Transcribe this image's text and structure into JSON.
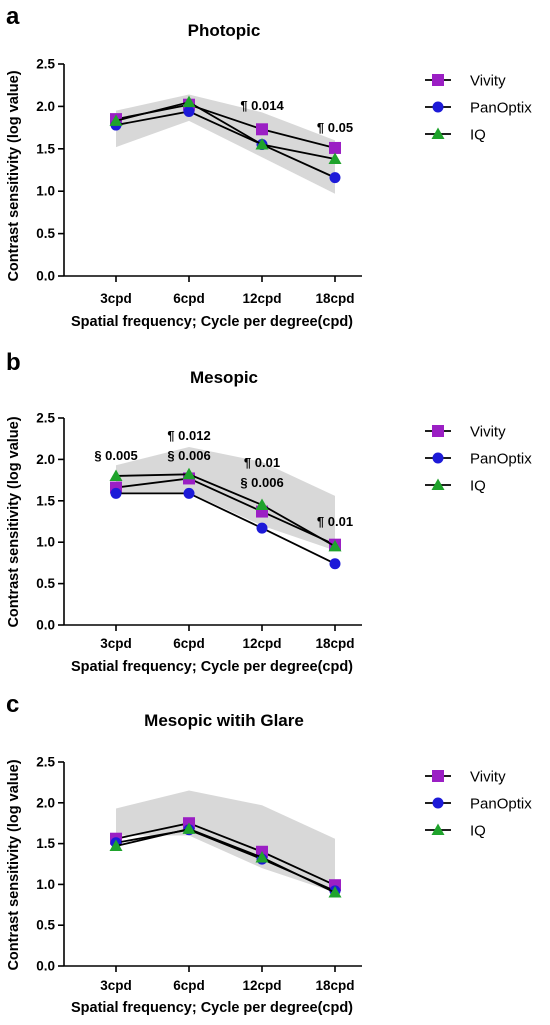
{
  "figure": {
    "legend": [
      {
        "name": "Vivity",
        "color": "#9b1fc4",
        "marker": "square"
      },
      {
        "name": "PanOptix",
        "color": "#1d1ad8",
        "marker": "circle"
      },
      {
        "name": "IQ",
        "color": "#1fa32c",
        "marker": "triangle"
      }
    ]
  },
  "chart_data": [
    {
      "panel": "a",
      "type": "line",
      "title": "Photopic",
      "xlabel": "Spatial frequency; Cycle per degree(cpd)",
      "ylabel": "Contrast sensitivity (log value)",
      "categories": [
        "3cpd",
        "6cpd",
        "12cpd",
        "18cpd"
      ],
      "ylim": [
        0.0,
        2.5
      ],
      "yticks": [
        "0.0",
        "0.5",
        "1.0",
        "1.5",
        "2.0",
        "2.5"
      ],
      "grid": false,
      "legend_position": "right",
      "normal_range": {
        "lower": [
          1.52,
          1.83,
          1.4,
          0.97
        ],
        "upper": [
          1.95,
          2.14,
          1.93,
          1.6
        ]
      },
      "series": [
        {
          "name": "Vivity",
          "values": [
            1.85,
            2.02,
            1.73,
            1.51
          ]
        },
        {
          "name": "PanOptix",
          "values": [
            1.78,
            1.94,
            1.55,
            1.16
          ]
        },
        {
          "name": "IQ",
          "values": [
            1.83,
            2.05,
            1.55,
            1.38
          ]
        }
      ],
      "annotations": [
        {
          "category": "12cpd",
          "lines": [
            "¶ 0.014"
          ]
        },
        {
          "category": "18cpd",
          "lines": [
            "¶ 0.05"
          ]
        }
      ]
    },
    {
      "panel": "b",
      "type": "line",
      "title": "Mesopic",
      "xlabel": "Spatial frequency; Cycle per degree(cpd)",
      "ylabel": "Contrast sensitivity (log value)",
      "categories": [
        "3cpd",
        "6cpd",
        "12cpd",
        "18cpd"
      ],
      "ylim": [
        0.0,
        2.5
      ],
      "yticks": [
        "0.0",
        "0.5",
        "1.0",
        "1.5",
        "2.0",
        "2.5"
      ],
      "grid": false,
      "legend_position": "right",
      "normal_range": {
        "lower": [
          1.6,
          1.6,
          1.2,
          0.9
        ],
        "upper": [
          1.93,
          2.15,
          1.97,
          1.56
        ]
      },
      "series": [
        {
          "name": "Vivity",
          "values": [
            1.66,
            1.77,
            1.37,
            0.97
          ]
        },
        {
          "name": "PanOptix",
          "values": [
            1.59,
            1.59,
            1.17,
            0.74
          ]
        },
        {
          "name": "IQ",
          "values": [
            1.8,
            1.82,
            1.45,
            0.95
          ]
        }
      ],
      "annotations": [
        {
          "category": "3cpd",
          "lines": [
            "§ 0.005"
          ]
        },
        {
          "category": "6cpd",
          "lines": [
            "¶ 0.012",
            "§ 0.006"
          ]
        },
        {
          "category": "12cpd",
          "lines": [
            "¶ 0.01",
            "§ 0.006"
          ]
        },
        {
          "category": "18cpd",
          "lines": [
            "¶ 0.01"
          ]
        }
      ]
    },
    {
      "panel": "c",
      "type": "line",
      "title": "Mesopic witih Glare",
      "xlabel": "Spatial frequency; Cycle per degree(cpd)",
      "ylabel": "Contrast sensitivity (log value)",
      "categories": [
        "3cpd",
        "6cpd",
        "12cpd",
        "18cpd"
      ],
      "ylim": [
        0.0,
        2.5
      ],
      "yticks": [
        "0.0",
        "0.5",
        "1.0",
        "1.5",
        "2.0",
        "2.5"
      ],
      "grid": false,
      "legend_position": "right",
      "normal_range": {
        "lower": [
          1.6,
          1.6,
          1.2,
          0.9
        ],
        "upper": [
          1.93,
          2.15,
          1.97,
          1.56
        ]
      },
      "series": [
        {
          "name": "Vivity",
          "values": [
            1.56,
            1.75,
            1.4,
            0.99
          ]
        },
        {
          "name": "PanOptix",
          "values": [
            1.51,
            1.67,
            1.31,
            0.92
          ]
        },
        {
          "name": "IQ",
          "values": [
            1.47,
            1.68,
            1.33,
            0.9
          ]
        }
      ],
      "annotations": []
    }
  ]
}
